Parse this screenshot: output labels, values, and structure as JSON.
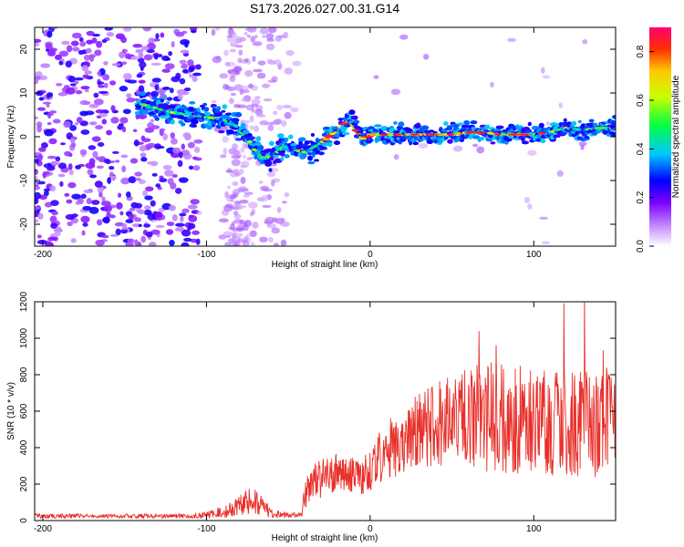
{
  "title": "S173.2026.027.00.31.G14",
  "chart_data": [
    {
      "type": "heatmap",
      "xlabel": "Height of straight line (km)",
      "ylabel": "Frequency (Hz)",
      "xlim": [
        -205,
        150
      ],
      "ylim": [
        -25,
        25
      ],
      "xticks": [
        -200,
        -100,
        0,
        100
      ],
      "yticks": [
        -20,
        -10,
        0,
        10,
        20
      ],
      "colorbar": {
        "label": "Normalized spectral amplitude",
        "range": [
          0,
          0.9
        ],
        "ticks": [
          "0.0",
          "0.2",
          "0.4",
          "0.6",
          "0.8"
        ],
        "colors": [
          "#f3e6fb",
          "#7b00ff",
          "#0000ff",
          "#00c8ff",
          "#00ff44",
          "#c8ff00",
          "#ffc800",
          "#ff3000",
          "#ff0070"
        ]
      },
      "ridge": {
        "x": [
          -140,
          -130,
          -120,
          -110,
          -100,
          -90,
          -82,
          -76,
          -70,
          -64,
          -58,
          -52,
          -46,
          -40,
          -34,
          -28,
          -24,
          -20,
          -16,
          -12,
          -8,
          -4,
          0,
          10,
          20,
          30,
          40,
          50,
          60,
          70,
          80,
          90,
          100,
          110,
          120,
          130,
          140,
          150
        ],
        "y": [
          7.5,
          6.5,
          5.5,
          5.0,
          4.5,
          4.0,
          2.5,
          0,
          -3.0,
          -5.0,
          -4.0,
          -2.0,
          -3.0,
          -3.5,
          -2.5,
          -1.0,
          0.5,
          1.0,
          3.0,
          3.5,
          1.0,
          -0.5,
          0.5,
          0.5,
          0.5,
          0.5,
          0.5,
          0.5,
          1.0,
          1.0,
          0.5,
          0.5,
          0.5,
          1.0,
          2.0,
          1.5,
          2.0,
          2.0
        ]
      },
      "noise_region_x": [
        -205,
        -105
      ]
    },
    {
      "type": "line",
      "xlabel": "Height of straight line (km)",
      "ylabel": "SNR (10 * v/v)",
      "xlim": [
        -205,
        150
      ],
      "ylim": [
        0,
        1200
      ],
      "xticks": [
        -200,
        -100,
        0,
        100
      ],
      "yticks": [
        0,
        200,
        400,
        600,
        800,
        1000,
        1200
      ],
      "series_color": "#e8302a",
      "envelope": {
        "x": [
          -205,
          -110,
          -100,
          -90,
          -80,
          -75,
          -70,
          -65,
          -60,
          -50,
          -42,
          -40,
          -35,
          -20,
          -5,
          0,
          10,
          20,
          30,
          40,
          50,
          60,
          70,
          80,
          100,
          120,
          140,
          150
        ],
        "center": [
          25,
          25,
          30,
          50,
          90,
          110,
          100,
          70,
          40,
          30,
          30,
          120,
          210,
          260,
          240,
          280,
          390,
          440,
          490,
          520,
          540,
          560,
          560,
          560,
          550,
          540,
          520,
          520
        ],
        "spread": [
          12,
          12,
          20,
          40,
          60,
          80,
          70,
          50,
          25,
          15,
          15,
          80,
          110,
          110,
          100,
          120,
          160,
          200,
          230,
          260,
          270,
          280,
          300,
          300,
          300,
          300,
          290,
          290
        ]
      }
    }
  ]
}
